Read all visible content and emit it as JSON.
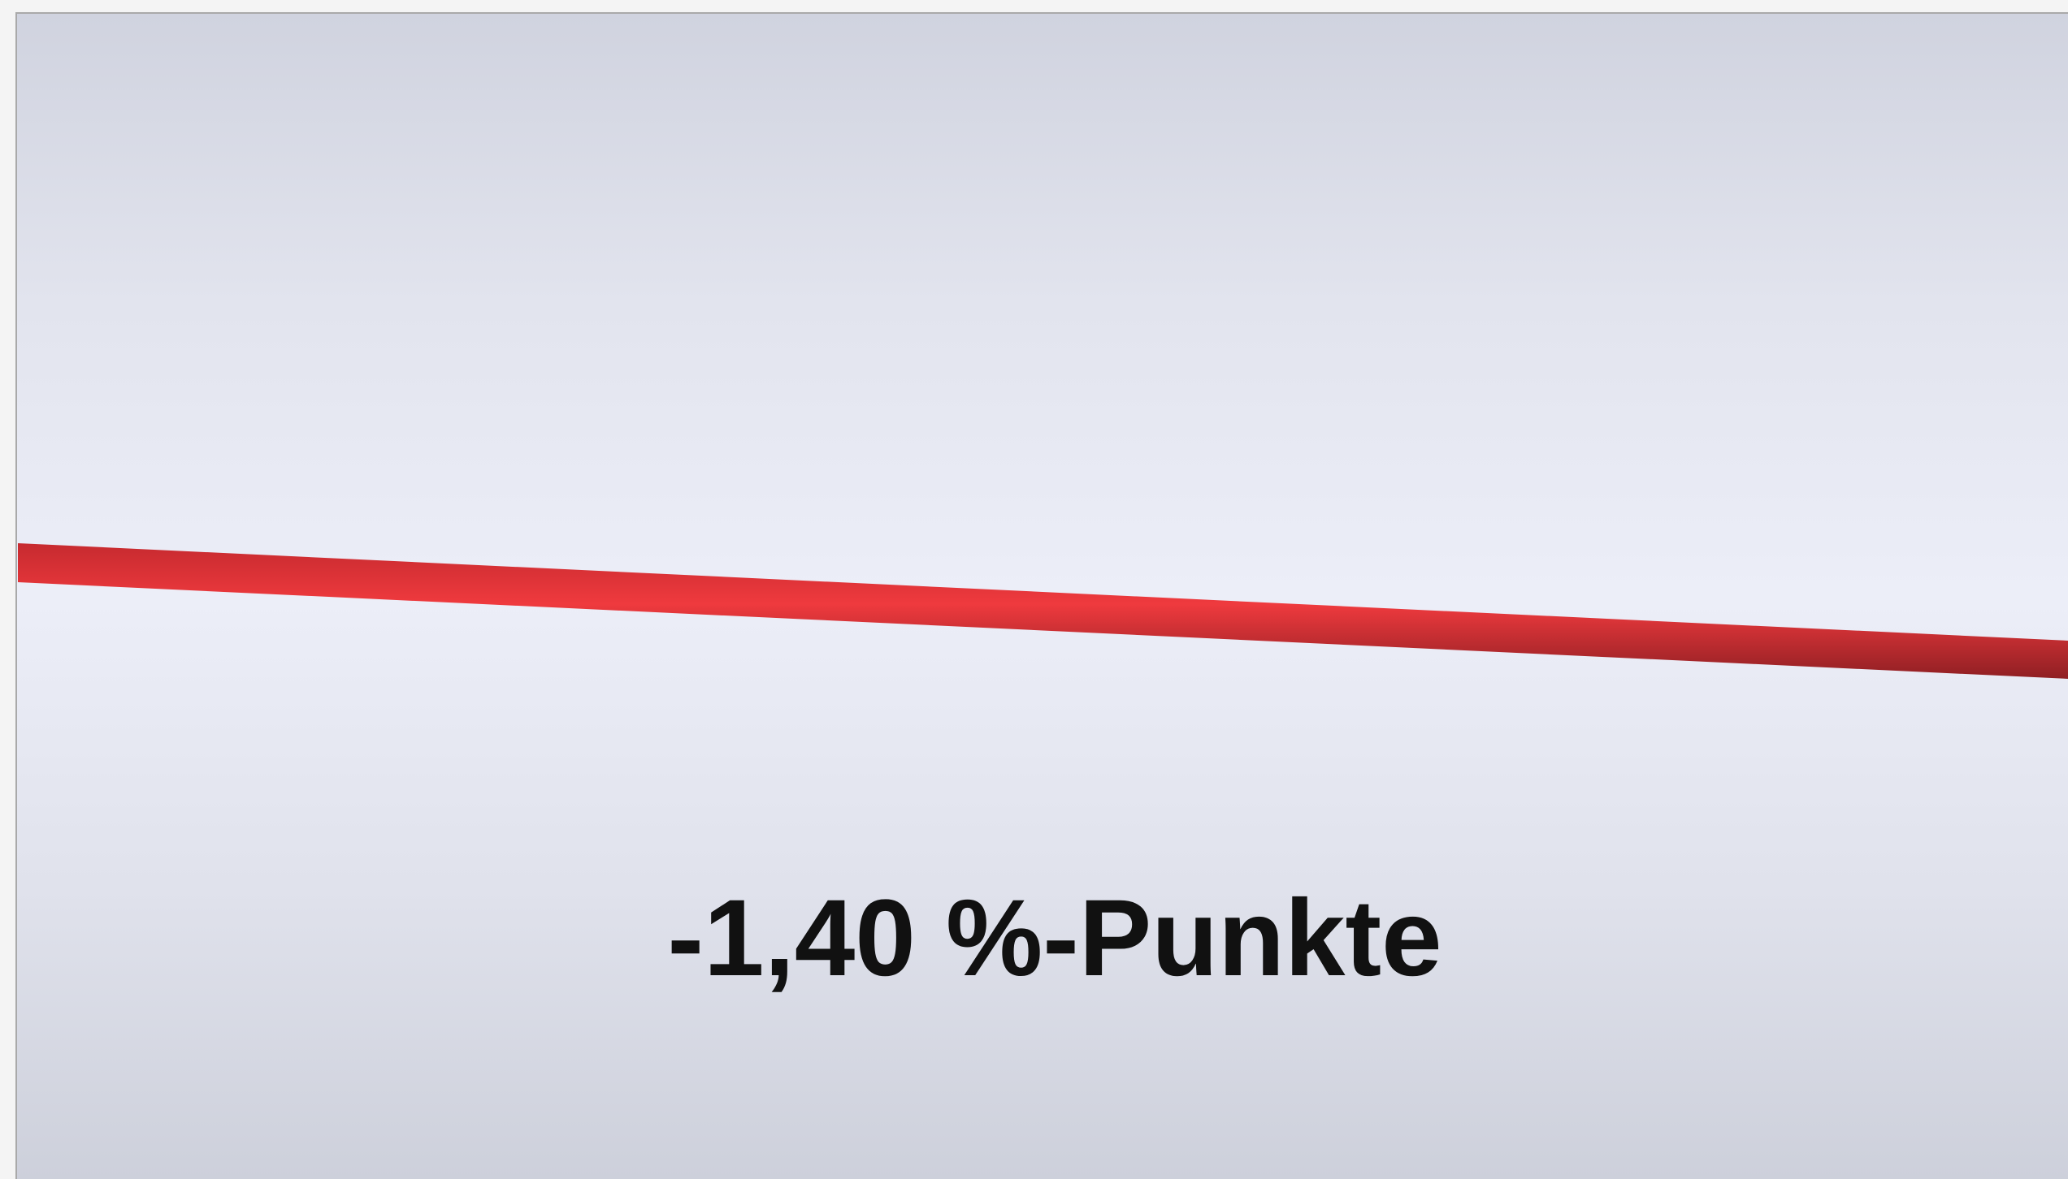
{
  "label": "-1,40 %-Punkte"
}
